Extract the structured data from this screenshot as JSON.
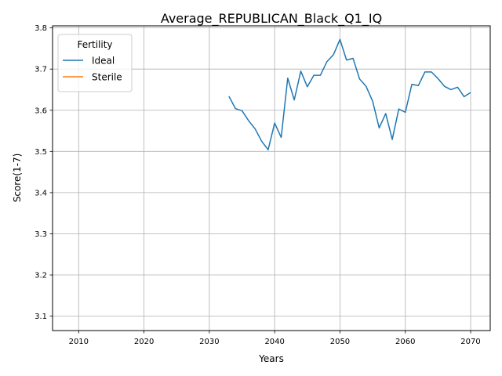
{
  "chart_data": {
    "type": "line",
    "title": "Average_REPUBLICAN_Black_Q1_IQ",
    "xlabel": "Years",
    "ylabel": "Score(1-7)",
    "xlim": [
      2006,
      2073
    ],
    "ylim": [
      3.065,
      3.805
    ],
    "xticks": [
      2010,
      2020,
      2030,
      2040,
      2050,
      2060,
      2070
    ],
    "yticks": [
      3.1,
      3.2,
      3.3,
      3.4,
      3.5,
      3.6,
      3.7,
      3.8
    ],
    "grid": true,
    "legend": {
      "title": "Fertility",
      "placement": "upper-left",
      "entries": [
        "Ideal",
        "Sterile"
      ]
    },
    "series": [
      {
        "name": "Ideal",
        "color": "#1f77b4",
        "x": [
          2033,
          2034,
          2035,
          2036,
          2037,
          2038,
          2039,
          2040,
          2041,
          2042,
          2043,
          2044,
          2045,
          2046,
          2047,
          2048,
          2049,
          2050,
          2051,
          2052,
          2053,
          2054,
          2055,
          2056,
          2057,
          2058,
          2059,
          2060,
          2061,
          2062,
          2063,
          2064,
          2065,
          2066,
          2067,
          2068,
          2069,
          2070
        ],
        "values": [
          3.634,
          3.604,
          3.599,
          3.575,
          3.555,
          3.525,
          3.504,
          3.569,
          3.534,
          3.678,
          3.625,
          3.695,
          3.657,
          3.685,
          3.685,
          3.718,
          3.735,
          3.772,
          3.722,
          3.726,
          3.676,
          3.658,
          3.622,
          3.557,
          3.592,
          3.529,
          3.603,
          3.595,
          3.663,
          3.66,
          3.693,
          3.693,
          3.677,
          3.658,
          3.65,
          3.656,
          3.633,
          3.643
        ]
      },
      {
        "name": "Sterile",
        "color": "#ff7f0e",
        "x": [],
        "values": []
      }
    ]
  }
}
